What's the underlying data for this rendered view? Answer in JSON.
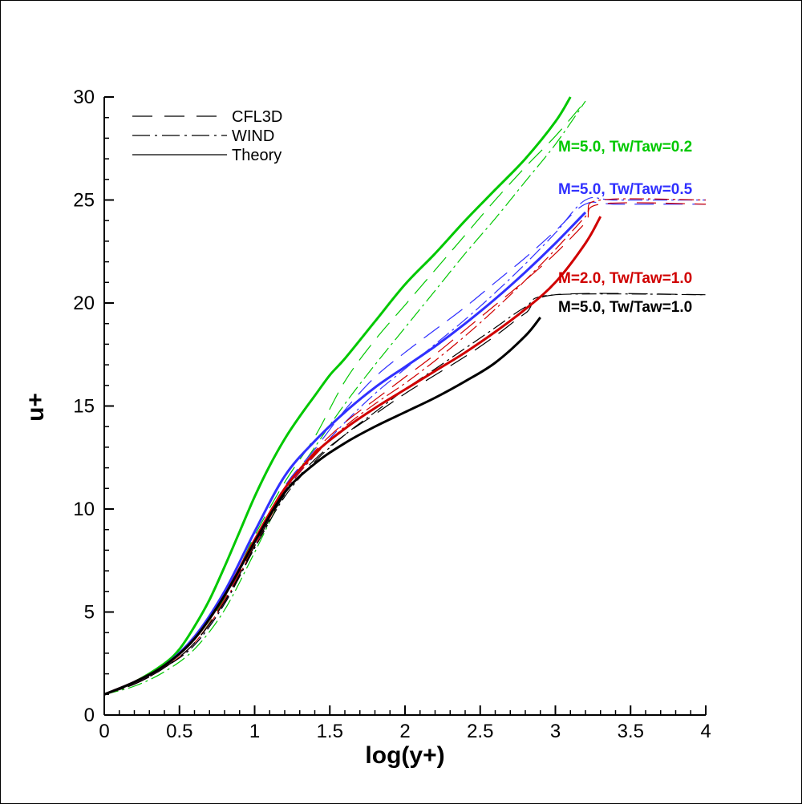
{
  "chart_data": {
    "type": "line",
    "xlabel": "log(y+)",
    "ylabel": "u+",
    "xlim": [
      0,
      4
    ],
    "ylim": [
      0,
      30
    ],
    "x_ticks": [
      "0",
      "0.5",
      "1",
      "1.5",
      "2",
      "2.5",
      "3",
      "3.5",
      "4"
    ],
    "y_ticks": [
      "0",
      "5",
      "10",
      "15",
      "20",
      "25",
      "30"
    ],
    "grid": false,
    "legend_position": "top-left",
    "legend": [
      {
        "label": "CFL3D",
        "style": "dashed"
      },
      {
        "label": "WIND",
        "style": "dashdot"
      },
      {
        "label": "Theory",
        "style": "solid"
      }
    ],
    "annotations": [
      {
        "text": "M=5.0, Tw/Taw=0.2",
        "color": "#00c800",
        "x": 3.02,
        "y": 27.3
      },
      {
        "text": "M=5.0, Tw/Taw=0.5",
        "color": "#3030ff",
        "x": 3.02,
        "y": 25.0
      },
      {
        "text": "M=2.0, Tw/Taw=1.0",
        "color": "#d00000",
        "x": 3.02,
        "y": 20.7
      },
      {
        "text": "M=5.0, Tw/Taw=1.0",
        "color": "#000000",
        "x": 3.02,
        "y": 19.2
      }
    ],
    "series": [
      {
        "case": "M=5.0, Tw/Taw=0.2",
        "source": "Theory",
        "color": "#00c800",
        "x": [
          0,
          0.2,
          0.4,
          0.5,
          0.6,
          0.7,
          0.8,
          0.9,
          1.0,
          1.1,
          1.2,
          1.3,
          1.4,
          1.5,
          1.6,
          1.8,
          2.0,
          2.2,
          2.4,
          2.6,
          2.8,
          3.0,
          3.1
        ],
        "y": [
          1.0,
          1.6,
          2.5,
          3.2,
          4.3,
          5.6,
          7.2,
          8.9,
          10.6,
          12.1,
          13.4,
          14.5,
          15.5,
          16.5,
          17.3,
          19.1,
          20.9,
          22.4,
          24.0,
          25.5,
          27.0,
          28.8,
          30.0
        ]
      },
      {
        "case": "M=5.0, Tw/Taw=0.2",
        "source": "CFL3D",
        "color": "#00c800",
        "x": [
          0,
          0.2,
          0.4,
          0.6,
          0.8,
          1.0,
          1.2,
          1.4,
          1.6,
          1.8,
          2.0,
          2.2,
          2.4,
          2.6,
          2.8,
          3.0,
          3.2
        ],
        "y": [
          1.0,
          1.5,
          2.3,
          3.5,
          5.7,
          8.7,
          11.3,
          13.5,
          16.2,
          18.2,
          19.9,
          21.6,
          23.3,
          25.0,
          26.6,
          28.1,
          29.8
        ]
      },
      {
        "case": "M=5.0, Tw/Taw=0.2",
        "source": "WIND",
        "color": "#00c800",
        "x": [
          0,
          0.2,
          0.4,
          0.6,
          0.8,
          1.0,
          1.2,
          1.4,
          1.6,
          1.8,
          2.0,
          2.2,
          2.4,
          2.6,
          2.8,
          3.0,
          3.2
        ],
        "y": [
          1.0,
          1.4,
          2.1,
          3.2,
          5.1,
          7.9,
          10.8,
          13.0,
          15.1,
          17.0,
          18.8,
          20.6,
          22.4,
          24.1,
          25.9,
          27.7,
          29.8
        ]
      },
      {
        "case": "M=5.0, Tw/Taw=0.5",
        "source": "Theory",
        "color": "#3030ff",
        "x": [
          0,
          0.2,
          0.4,
          0.6,
          0.8,
          1.0,
          1.2,
          1.4,
          1.6,
          1.8,
          2.0,
          2.2,
          2.4,
          2.6,
          2.8,
          3.0,
          3.2
        ],
        "y": [
          1.0,
          1.6,
          2.4,
          3.8,
          6.0,
          8.9,
          11.6,
          13.3,
          14.7,
          15.9,
          16.9,
          17.9,
          19.0,
          20.2,
          21.5,
          22.9,
          24.4
        ]
      },
      {
        "case": "M=5.0, Tw/Taw=0.5",
        "source": "CFL3D",
        "color": "#3030ff",
        "x": [
          0,
          0.2,
          0.4,
          0.6,
          0.8,
          1.0,
          1.2,
          1.4,
          1.6,
          1.8,
          2.0,
          2.2,
          2.4,
          2.6,
          2.8,
          3.0,
          3.2,
          3.4,
          4.0
        ],
        "y": [
          1.0,
          1.5,
          2.3,
          3.5,
          5.6,
          8.4,
          11.1,
          12.9,
          14.8,
          16.4,
          17.6,
          18.7,
          19.8,
          21.0,
          22.2,
          23.5,
          24.8,
          24.8,
          24.8
        ]
      },
      {
        "case": "M=5.0, Tw/Taw=0.5",
        "source": "WIND",
        "color": "#3030ff",
        "x": [
          0,
          0.2,
          0.4,
          0.6,
          0.8,
          1.0,
          1.2,
          1.4,
          1.6,
          1.8,
          2.0,
          2.2,
          2.4,
          2.6,
          2.8,
          3.0,
          3.2,
          3.4,
          4.0
        ],
        "y": [
          1.0,
          1.5,
          2.3,
          3.4,
          5.4,
          8.2,
          10.9,
          12.6,
          14.2,
          15.6,
          16.8,
          18.0,
          19.2,
          20.5,
          21.9,
          23.4,
          25.0,
          25.0,
          25.0
        ]
      },
      {
        "case": "M=2.0, Tw/Taw=1.0",
        "source": "Theory",
        "color": "#d00000",
        "x": [
          0,
          0.2,
          0.4,
          0.6,
          0.8,
          1.0,
          1.2,
          1.4,
          1.6,
          1.8,
          2.0,
          2.2,
          2.4,
          2.6,
          2.8,
          3.0,
          3.2,
          3.3
        ],
        "y": [
          1.0,
          1.6,
          2.4,
          3.7,
          5.8,
          8.5,
          11.0,
          12.7,
          13.9,
          14.9,
          15.8,
          16.7,
          17.6,
          18.6,
          19.7,
          21.0,
          22.9,
          24.2
        ]
      },
      {
        "case": "M=2.0, Tw/Taw=1.0",
        "source": "CFL3D",
        "color": "#d00000",
        "x": [
          0,
          0.2,
          0.4,
          0.6,
          0.8,
          1.0,
          1.2,
          1.4,
          1.6,
          1.8,
          2.0,
          2.2,
          2.4,
          2.6,
          2.8,
          3.0,
          3.2,
          3.3,
          4.0
        ],
        "y": [
          1.0,
          1.5,
          2.3,
          3.5,
          5.6,
          8.3,
          10.9,
          12.8,
          14.2,
          15.3,
          16.4,
          17.5,
          18.7,
          19.9,
          21.1,
          22.4,
          23.9,
          24.8,
          24.8
        ]
      },
      {
        "case": "M=2.0, Tw/Taw=1.0",
        "source": "WIND",
        "color": "#d00000",
        "x": [
          0,
          0.2,
          0.4,
          0.6,
          0.8,
          1.0,
          1.2,
          1.4,
          1.6,
          1.8,
          2.0,
          2.2,
          2.4,
          2.6,
          2.8,
          3.0,
          3.2,
          3.3,
          4.0
        ],
        "y": [
          1.0,
          1.5,
          2.3,
          3.5,
          5.5,
          8.2,
          10.8,
          12.6,
          14.0,
          15.1,
          16.1,
          17.2,
          18.4,
          19.7,
          21.1,
          22.6,
          24.2,
          25.0,
          25.0
        ]
      },
      {
        "case": "M=5.0, Tw/Taw=1.0",
        "source": "Theory",
        "color": "#000000",
        "x": [
          0,
          0.2,
          0.4,
          0.6,
          0.8,
          1.0,
          1.2,
          1.4,
          1.6,
          1.8,
          2.0,
          2.2,
          2.4,
          2.6,
          2.8,
          2.9
        ],
        "y": [
          1.0,
          1.6,
          2.4,
          3.7,
          5.8,
          8.4,
          10.8,
          12.2,
          13.2,
          14.0,
          14.7,
          15.4,
          16.2,
          17.1,
          18.4,
          19.3
        ]
      },
      {
        "case": "M=5.0, Tw/Taw=1.0",
        "source": "CFL3D",
        "color": "#000000",
        "x": [
          0,
          0.2,
          0.4,
          0.6,
          0.8,
          1.0,
          1.2,
          1.4,
          1.6,
          1.8,
          2.0,
          2.2,
          2.4,
          2.6,
          2.8,
          3.0,
          4.0
        ],
        "y": [
          1.0,
          1.5,
          2.3,
          3.5,
          5.5,
          8.2,
          10.7,
          12.4,
          13.6,
          14.6,
          15.6,
          16.5,
          17.4,
          18.4,
          19.5,
          20.4,
          20.4
        ]
      },
      {
        "case": "M=5.0, Tw/Taw=1.0",
        "source": "WIND",
        "color": "#000000",
        "x": [
          0,
          0.2,
          0.4,
          0.6,
          0.8,
          1.0,
          1.2,
          1.4,
          1.6,
          1.8,
          2.0,
          2.2,
          2.4,
          2.6,
          2.8,
          3.0,
          4.0
        ],
        "y": [
          1.0,
          1.5,
          2.3,
          3.4,
          5.4,
          8.1,
          10.6,
          12.3,
          13.6,
          14.7,
          15.8,
          16.8,
          17.8,
          18.8,
          19.8,
          20.4,
          20.4
        ]
      }
    ]
  }
}
